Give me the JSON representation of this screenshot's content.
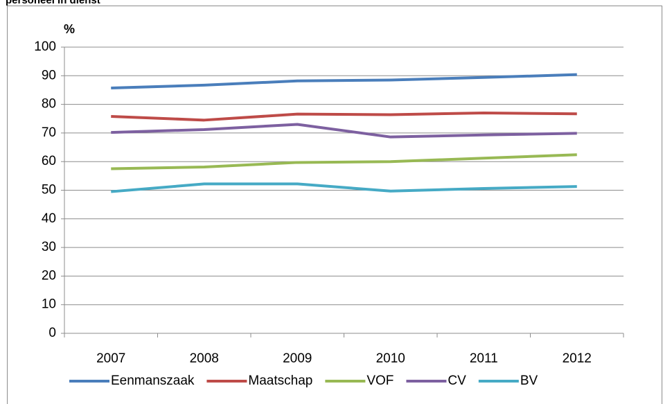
{
  "chart_data": {
    "type": "line",
    "title": "personeel in dienst",
    "y_label": "%",
    "categories": [
      "2007",
      "2008",
      "2009",
      "2010",
      "2011",
      "2012"
    ],
    "series": [
      {
        "name": "Eenmanszaak",
        "color": "#4a7ebb",
        "values": [
          85.7,
          86.7,
          88.2,
          88.5,
          89.4,
          90.4
        ]
      },
      {
        "name": "Maatschap",
        "color": "#be4b48",
        "values": [
          75.8,
          74.5,
          76.6,
          76.4,
          77.0,
          76.7
        ]
      },
      {
        "name": "VOF",
        "color": "#98b954",
        "values": [
          57.5,
          58.1,
          59.7,
          60.0,
          61.2,
          62.4
        ]
      },
      {
        "name": "CV",
        "color": "#7d60a0",
        "values": [
          70.2,
          71.2,
          73.0,
          68.6,
          69.3,
          69.9
        ]
      },
      {
        "name": "BV",
        "color": "#46aac5",
        "values": [
          49.5,
          52.2,
          52.2,
          49.7,
          50.6,
          51.3
        ]
      }
    ],
    "ylim": [
      0,
      100
    ],
    "yticks": [
      0,
      10,
      20,
      30,
      40,
      50,
      60,
      70,
      80,
      90,
      100
    ],
    "grid": true,
    "legend": "bottom"
  }
}
